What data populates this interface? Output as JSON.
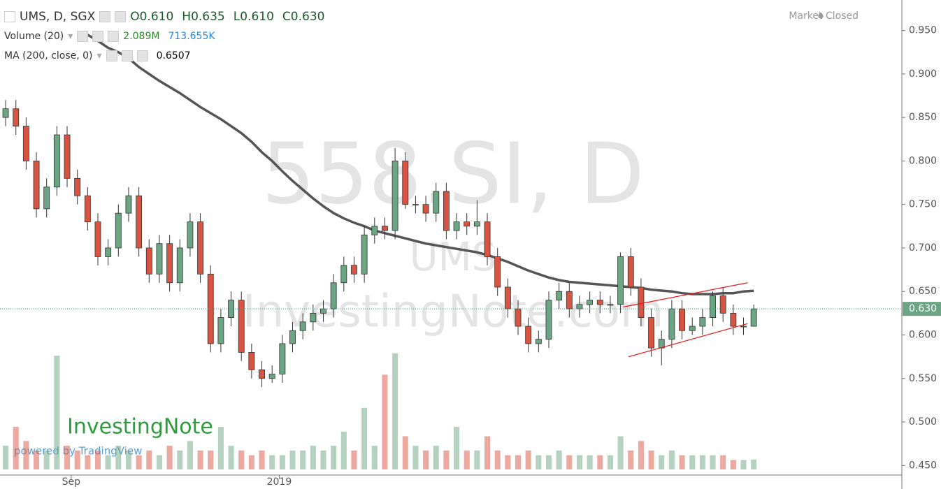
{
  "chart_data": {
    "type": "candlestick",
    "symbol": "UMS, D, SGX",
    "ohlc_legend": [
      {
        "key": "O",
        "value": 0.61,
        "label": "0.610"
      },
      {
        "key": "H",
        "value": 0.635,
        "label": "0.635"
      },
      {
        "key": "L",
        "value": 0.61,
        "label": "0.610"
      },
      {
        "key": "C",
        "value": 0.63,
        "label": "0.630"
      }
    ],
    "status": "Market Closed",
    "watermark": [
      "558.SI, D",
      "UMS",
      "InvestingNote.com"
    ],
    "logo": "InvestingNote",
    "powered_by": "powered by TradingView",
    "xlim": [
      -0.55,
      87.45
    ],
    "xticks": [
      {
        "value": 6.4,
        "label": "Sep"
      },
      {
        "value": 26.7,
        "label": "2019"
      }
    ],
    "ylim": [
      0.439,
      0.985
    ],
    "yticks": [
      {
        "value": 0.45,
        "label": "0.450"
      },
      {
        "value": 0.5,
        "label": "0.500"
      },
      {
        "value": 0.55,
        "label": "0.550"
      },
      {
        "value": 0.6,
        "label": "0.600"
      },
      {
        "value": 0.65,
        "label": "0.650"
      },
      {
        "value": 0.7,
        "label": "0.700"
      },
      {
        "value": 0.75,
        "label": "0.750"
      },
      {
        "value": 0.8,
        "label": "0.800"
      },
      {
        "value": 0.85,
        "label": "0.850"
      },
      {
        "value": 0.9,
        "label": "0.900"
      },
      {
        "value": 0.95,
        "label": "0.950"
      }
    ],
    "last_price": {
      "value": 0.63,
      "label": "0.630"
    },
    "up_color": "#6ba583",
    "down_color": "#d75442",
    "open": [
      0.85,
      0.86,
      0.84,
      0.8,
      0.745,
      0.77,
      0.83,
      0.78,
      0.76,
      0.73,
      0.69,
      0.7,
      0.74,
      0.76,
      0.7,
      0.67,
      0.705,
      0.66,
      0.7,
      0.73,
      0.67,
      0.59,
      0.62,
      0.64,
      0.58,
      0.56,
      0.55,
      0.555,
      0.59,
      0.605,
      0.615,
      0.625,
      0.63,
      0.66,
      0.68,
      0.67,
      0.715,
      0.725,
      0.72,
      0.8,
      0.75,
      0.75,
      0.74,
      0.765,
      0.72,
      0.73,
      0.725,
      0.73,
      0.69,
      0.655,
      0.63,
      0.61,
      0.59,
      0.595,
      0.64,
      0.65,
      0.63,
      0.635,
      0.64,
      0.635,
      0.635,
      0.69,
      0.655,
      0.62,
      0.585,
      0.595,
      0.63,
      0.605,
      0.61,
      0.62,
      0.645,
      0.625,
      0.61,
      0.61
    ],
    "high": [
      0.87,
      0.87,
      0.85,
      0.81,
      0.78,
      0.84,
      0.84,
      0.79,
      0.77,
      0.74,
      0.71,
      0.75,
      0.77,
      0.77,
      0.71,
      0.715,
      0.715,
      0.71,
      0.74,
      0.74,
      0.68,
      0.63,
      0.65,
      0.65,
      0.59,
      0.57,
      0.565,
      0.6,
      0.615,
      0.625,
      0.635,
      0.64,
      0.67,
      0.69,
      0.69,
      0.725,
      0.735,
      0.735,
      0.815,
      0.81,
      0.76,
      0.76,
      0.775,
      0.775,
      0.74,
      0.74,
      0.755,
      0.74,
      0.7,
      0.665,
      0.64,
      0.62,
      0.605,
      0.65,
      0.66,
      0.66,
      0.645,
      0.65,
      0.65,
      0.645,
      0.695,
      0.7,
      0.665,
      0.63,
      0.605,
      0.64,
      0.64,
      0.62,
      0.63,
      0.65,
      0.655,
      0.635,
      0.62,
      0.635
    ],
    "low": [
      0.84,
      0.83,
      0.79,
      0.735,
      0.735,
      0.76,
      0.77,
      0.75,
      0.72,
      0.68,
      0.68,
      0.69,
      0.73,
      0.69,
      0.66,
      0.66,
      0.65,
      0.65,
      0.69,
      0.66,
      0.58,
      0.58,
      0.61,
      0.57,
      0.55,
      0.54,
      0.545,
      0.545,
      0.58,
      0.595,
      0.605,
      0.615,
      0.62,
      0.65,
      0.66,
      0.66,
      0.705,
      0.71,
      0.71,
      0.745,
      0.74,
      0.73,
      0.73,
      0.71,
      0.71,
      0.715,
      0.715,
      0.68,
      0.645,
      0.62,
      0.6,
      0.58,
      0.58,
      0.585,
      0.63,
      0.62,
      0.62,
      0.625,
      0.625,
      0.625,
      0.625,
      0.645,
      0.61,
      0.575,
      0.565,
      0.585,
      0.595,
      0.6,
      0.6,
      0.61,
      0.615,
      0.6,
      0.6,
      0.61
    ],
    "close": [
      0.86,
      0.84,
      0.8,
      0.745,
      0.77,
      0.83,
      0.78,
      0.76,
      0.73,
      0.69,
      0.7,
      0.74,
      0.76,
      0.7,
      0.67,
      0.705,
      0.66,
      0.7,
      0.73,
      0.67,
      0.59,
      0.62,
      0.64,
      0.58,
      0.56,
      0.55,
      0.555,
      0.59,
      0.605,
      0.615,
      0.625,
      0.63,
      0.66,
      0.68,
      0.67,
      0.715,
      0.725,
      0.72,
      0.8,
      0.75,
      0.75,
      0.74,
      0.765,
      0.72,
      0.73,
      0.725,
      0.73,
      0.69,
      0.655,
      0.63,
      0.61,
      0.59,
      0.595,
      0.64,
      0.65,
      0.63,
      0.635,
      0.64,
      0.635,
      0.635,
      0.69,
      0.655,
      0.62,
      0.585,
      0.595,
      0.63,
      0.605,
      0.61,
      0.62,
      0.645,
      0.625,
      0.61,
      0.61,
      0.63
    ],
    "volume": {
      "name": "Volume (20)",
      "value_label": "2.089M",
      "ma_label": "713.655K",
      "vlim": [
        0,
        28
      ],
      "values": [
        5,
        9,
        6,
        4,
        4,
        24,
        5,
        4,
        3,
        4,
        3,
        5,
        4,
        3,
        4,
        3,
        5,
        4,
        6,
        4,
        4,
        9,
        5,
        4,
        3,
        4,
        3,
        3,
        4,
        4,
        5,
        4,
        5,
        8,
        4,
        13,
        5,
        20,
        24.5,
        7,
        5,
        4,
        5,
        4,
        9,
        4,
        4,
        7,
        4,
        3,
        3,
        4,
        3,
        3,
        4,
        3,
        3,
        3,
        3,
        3,
        7,
        4,
        6,
        4,
        3,
        4,
        3,
        3,
        3,
        3,
        3,
        2,
        2,
        2.089
      ]
    },
    "ma": {
      "name": "MA (200, close, 0)",
      "value_label": "0.6507",
      "color": "#555555",
      "values": [
        null,
        null,
        null,
        null,
        null,
        null,
        null,
        null,
        0.945,
        0.938,
        0.93,
        0.925,
        0.918,
        0.908,
        0.9,
        0.892,
        0.885,
        0.878,
        0.87,
        0.862,
        0.855,
        0.848,
        0.84,
        0.832,
        0.822,
        0.81,
        0.8,
        0.788,
        0.777,
        0.767,
        0.757,
        0.748,
        0.74,
        0.734,
        0.729,
        0.725,
        0.72,
        0.717,
        0.714,
        0.711,
        0.708,
        0.705,
        0.703,
        0.701,
        0.699,
        0.697,
        0.695,
        0.692,
        0.688,
        0.684,
        0.679,
        0.674,
        0.67,
        0.666,
        0.663,
        0.661,
        0.66,
        0.659,
        0.658,
        0.657,
        0.656,
        0.655,
        0.654,
        0.652,
        0.651,
        0.65,
        0.648,
        0.647,
        0.647,
        0.647,
        0.648,
        0.648,
        0.65,
        0.6507
      ]
    },
    "trendlines": [
      {
        "color": "#e8191c",
        "x": [
          60.8,
          72.4
        ],
        "y": [
          0.575,
          0.613
        ]
      },
      {
        "color": "#e8191c",
        "x": [
          60.2,
          72.4
        ],
        "y": [
          0.632,
          0.66
        ]
      }
    ]
  }
}
